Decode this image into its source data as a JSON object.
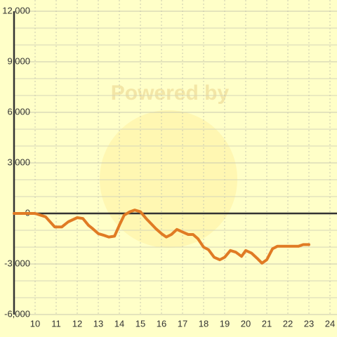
{
  "chart_data": {
    "type": "line",
    "watermark": "Powered by",
    "x": [
      9.0,
      10.0,
      10.5,
      10.93,
      11.27,
      11.57,
      12.0,
      12.27,
      12.53,
      12.73,
      13.0,
      13.27,
      13.5,
      13.77,
      14.0,
      14.23,
      14.5,
      14.73,
      15.0,
      15.27,
      15.5,
      15.73,
      16.0,
      16.23,
      16.47,
      16.73,
      17.0,
      17.27,
      17.5,
      17.73,
      18.0,
      18.23,
      18.5,
      18.77,
      19.0,
      19.27,
      19.53,
      19.8,
      20.0,
      20.27,
      20.53,
      20.77,
      21.0,
      21.27,
      21.5,
      22.0,
      22.5,
      22.73,
      23.0
    ],
    "series": [
      {
        "color": "#e07b24",
        "values": [
          0,
          0,
          -200,
          -800,
          -800,
          -500,
          -250,
          -300,
          -700,
          -900,
          -1200,
          -1300,
          -1400,
          -1350,
          -700,
          -100,
          100,
          200,
          100,
          -300,
          -600,
          -900,
          -1200,
          -1400,
          -1250,
          -950,
          -1100,
          -1250,
          -1250,
          -1500,
          -2000,
          -2150,
          -2600,
          -2750,
          -2600,
          -2200,
          -2300,
          -2550,
          -2200,
          -2350,
          -2650,
          -2950,
          -2750,
          -2100,
          -1950,
          -1950,
          -1950,
          -1850,
          -1850
        ]
      }
    ],
    "xlim": [
      9,
      24
    ],
    "xticks": [
      10,
      11,
      12,
      13,
      14,
      15,
      16,
      17,
      18,
      19,
      20,
      21,
      22,
      23,
      24
    ],
    "ylim": [
      -6000,
      12000
    ],
    "yticks": [
      {
        "value": -6000,
        "label": "-6,000"
      },
      {
        "value": -3000,
        "label": "-3,000"
      },
      0,
      {
        "value": 3000,
        "label": "3,000"
      },
      {
        "value": 6000,
        "label": "6,000"
      },
      {
        "value": 9000,
        "label": "9,000"
      },
      {
        "value": 12000,
        "label": "12,000"
      }
    ],
    "minor_yticks": [
      -5000,
      -4000,
      -2000,
      -1000,
      1000,
      2000,
      4000,
      5000,
      7000,
      8000,
      10000,
      11000
    ],
    "grid": true
  }
}
